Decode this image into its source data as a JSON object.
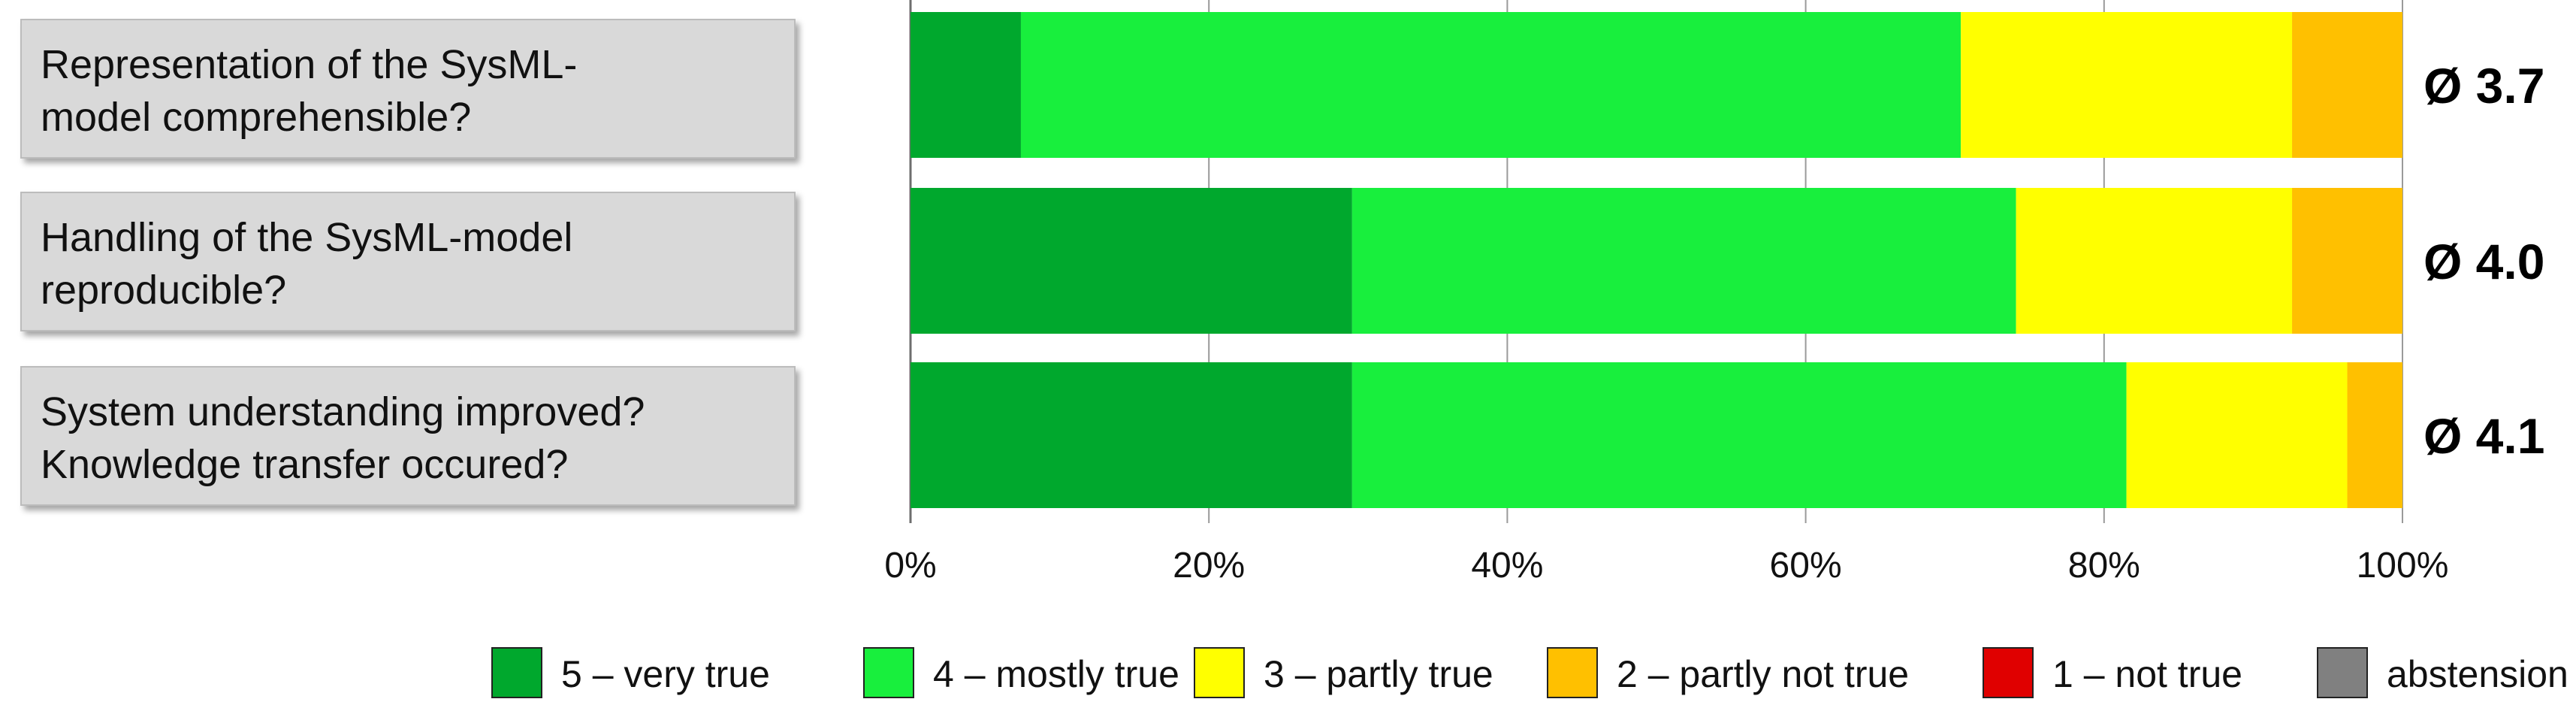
{
  "chart_data": {
    "type": "bar",
    "orientation": "horizontal",
    "stacked": true,
    "xlim": [
      0,
      100
    ],
    "x_ticks": [
      "0%",
      "20%",
      "40%",
      "60%",
      "80%",
      "100%"
    ],
    "grid": "vertical",
    "legend_position": "bottom",
    "categories": [
      {
        "lines": [
          "Representation of the SysML-",
          "model comprehensible?"
        ],
        "average": "Ø 3.7"
      },
      {
        "lines": [
          "Handling of the SysML-model",
          "reproducible?"
        ],
        "average": "Ø 4.0"
      },
      {
        "lines": [
          "System understanding improved?",
          "Knowledge transfer occured?"
        ],
        "average": "Ø 4.1"
      }
    ],
    "series": [
      {
        "name": "5 – very true",
        "color": "#00a82d",
        "values": [
          7.4,
          29.6,
          29.6
        ]
      },
      {
        "name": "4 – mostly true",
        "color": "#18ef3d",
        "values": [
          63.0,
          44.5,
          51.9
        ]
      },
      {
        "name": "3 – partly true",
        "color": "#ffff00",
        "values": [
          22.2,
          18.5,
          14.8
        ]
      },
      {
        "name": "2 – partly not true",
        "color": "#ffc000",
        "values": [
          7.4,
          7.4,
          3.7
        ]
      },
      {
        "name": "1 – not true",
        "color": "#e00000",
        "values": [
          0,
          0,
          0
        ]
      },
      {
        "name": "abstension",
        "color": "#808080",
        "values": [
          0,
          0,
          0
        ]
      }
    ]
  }
}
